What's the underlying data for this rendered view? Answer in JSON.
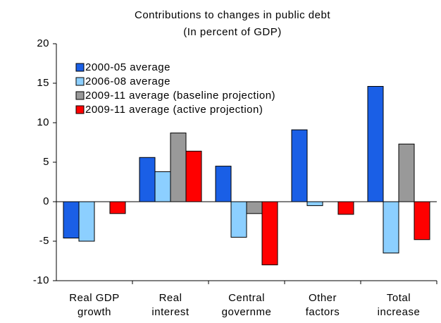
{
  "chart_data": {
    "type": "bar",
    "title": "Contributions to changes in public debt",
    "subtitle": "(In percent of GDP)",
    "categories": [
      [
        "Real GDP",
        "growth"
      ],
      [
        "Real",
        "interest"
      ],
      [
        "Central",
        "governme"
      ],
      [
        "Other",
        "factors"
      ],
      [
        "Total",
        "increase"
      ]
    ],
    "series": [
      {
        "name": "2000-05 average",
        "color": "#1a5fe6",
        "values": [
          -4.6,
          5.6,
          4.5,
          9.1,
          14.6
        ]
      },
      {
        "name": "2006-08 average",
        "color": "#8ccfff",
        "values": [
          -5.0,
          3.8,
          -4.5,
          -0.5,
          -6.5
        ]
      },
      {
        "name": "2009-11 average (baseline projection)",
        "color": "#999999",
        "values": [
          null,
          8.7,
          -1.5,
          null,
          7.3
        ]
      },
      {
        "name": "2009-11 average (active projection)",
        "color": "#ff0000",
        "values": [
          -1.5,
          6.4,
          -8.0,
          -1.6,
          -4.8
        ]
      }
    ],
    "ylim": [
      -10,
      20
    ],
    "yticks": [
      -10,
      -5,
      0,
      5,
      10,
      15,
      20
    ],
    "legend": "upper left"
  }
}
